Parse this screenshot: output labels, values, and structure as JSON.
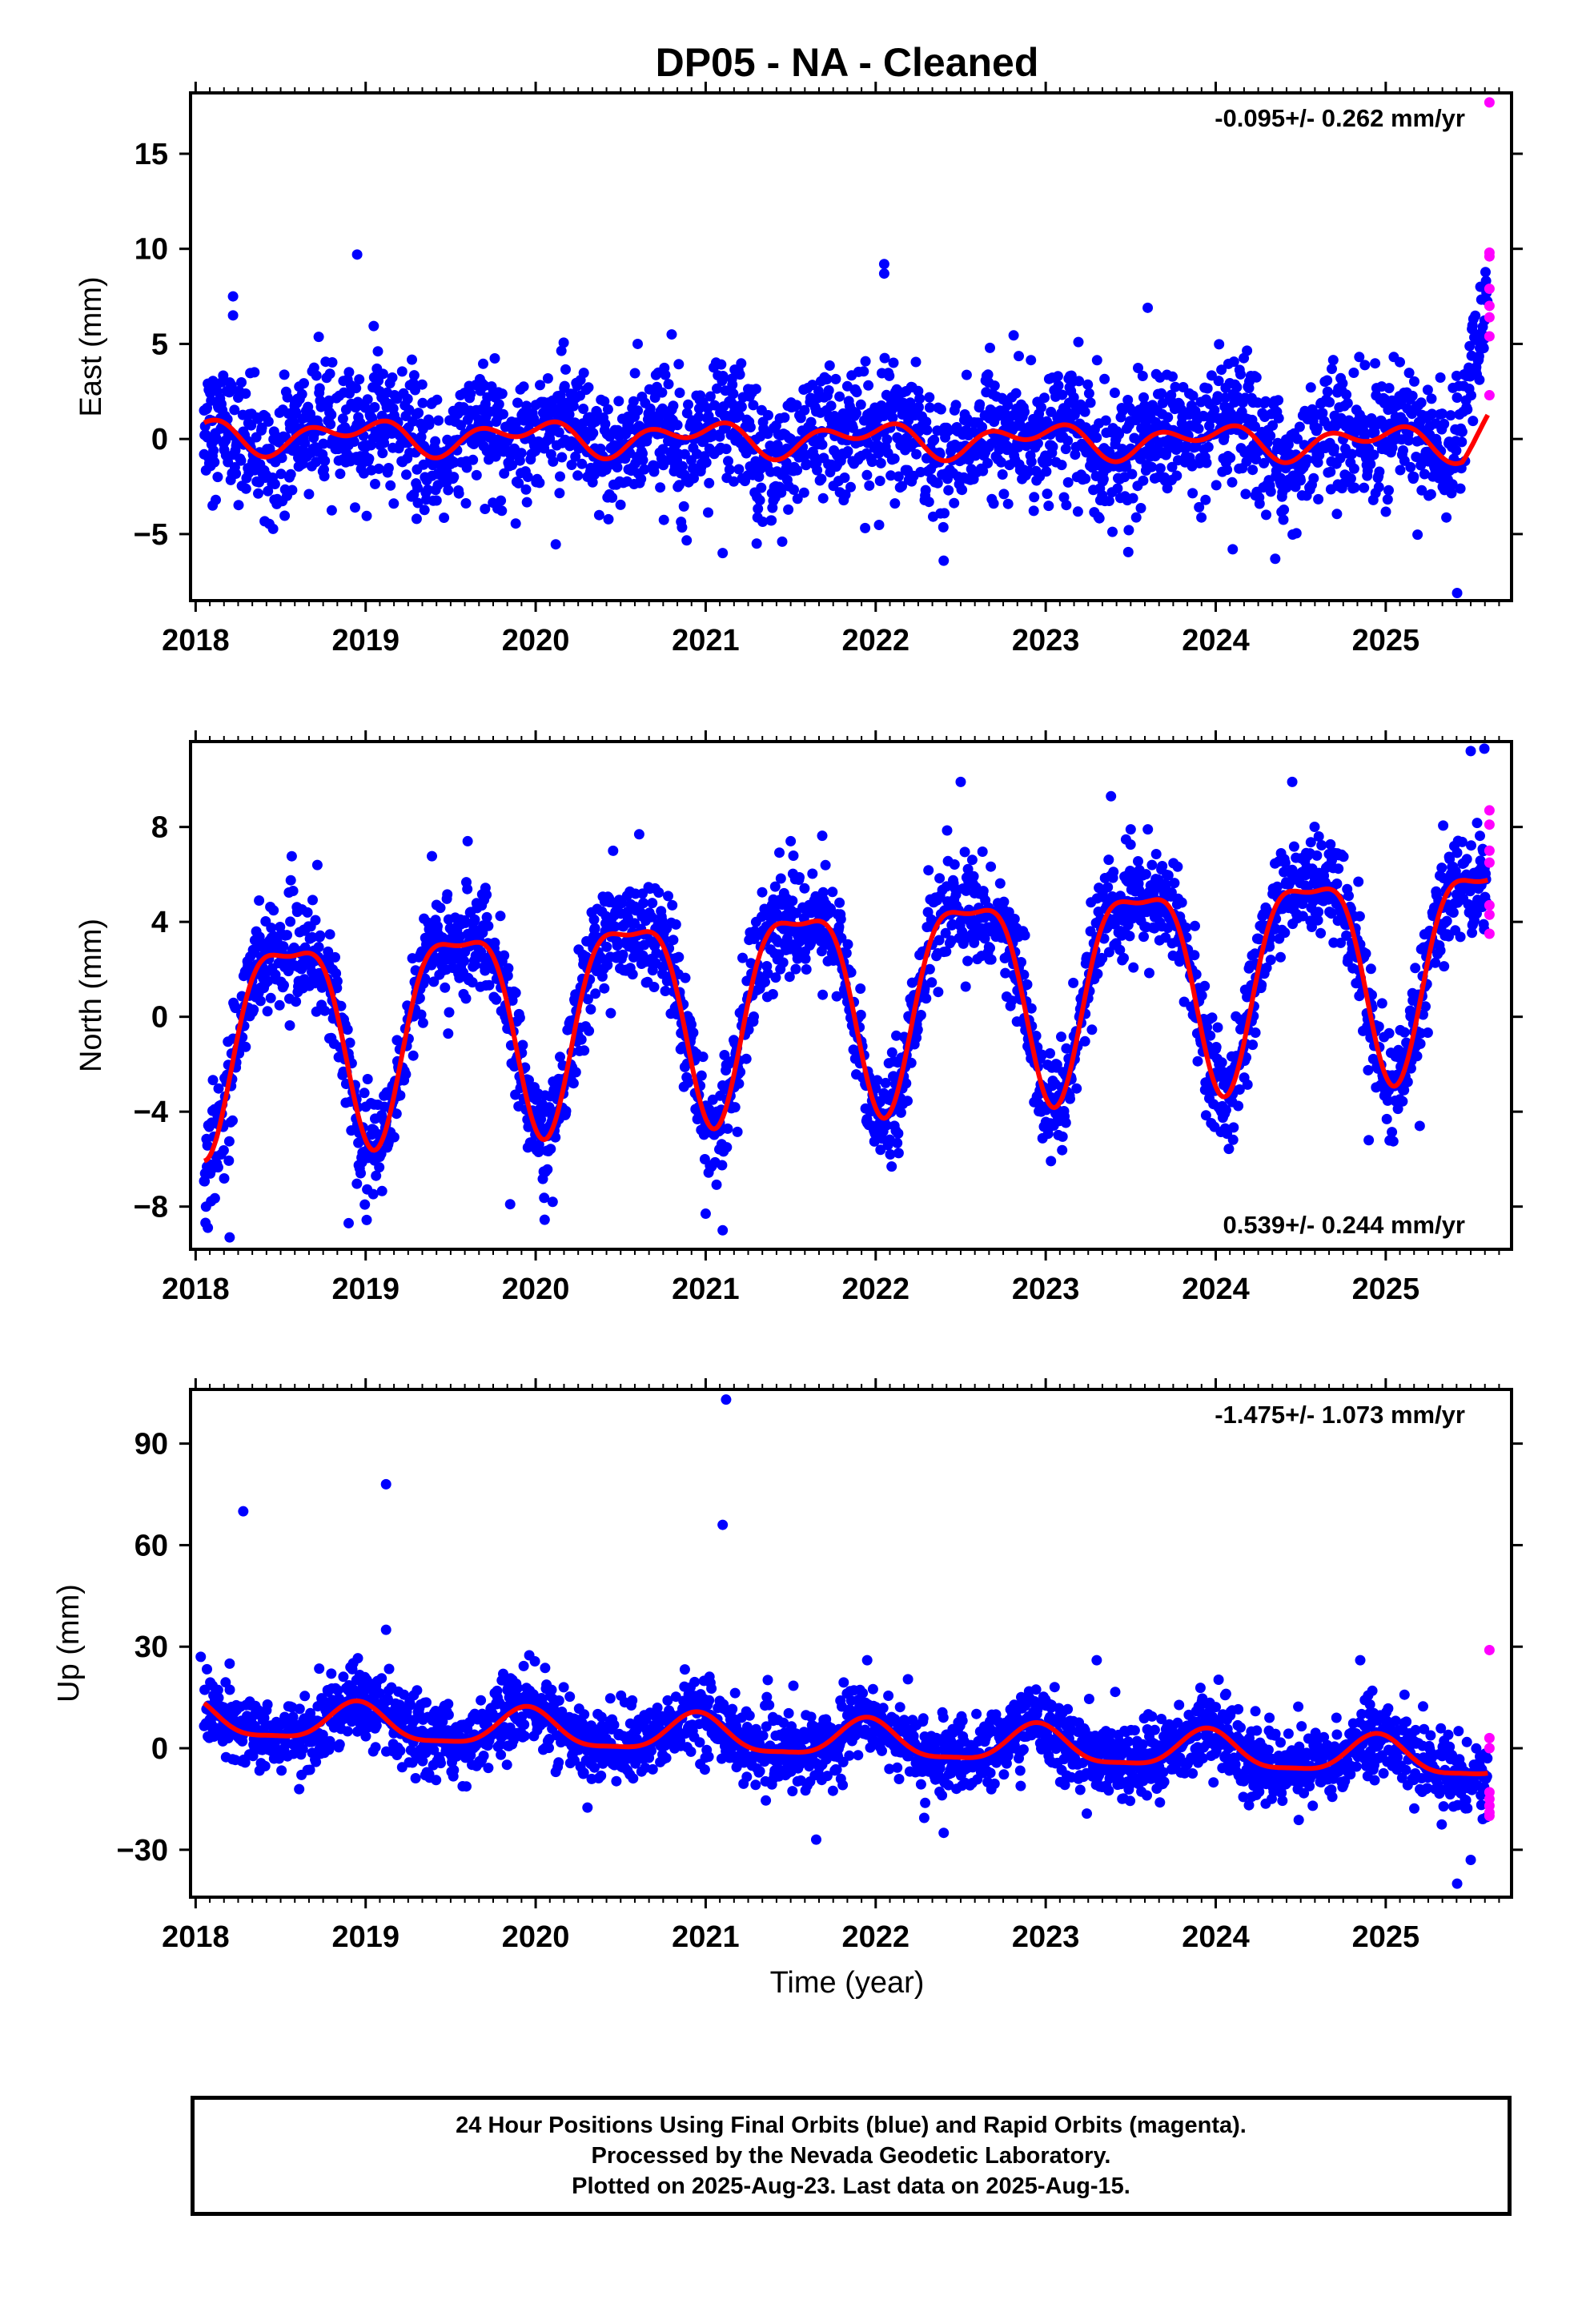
{
  "title": "DP05  - NA - Cleaned",
  "xlabel": "Time (year)",
  "x_ticks": [
    "2018",
    "2019",
    "2020",
    "2021",
    "2022",
    "2023",
    "2024",
    "2025"
  ],
  "colors": {
    "final": "#0000ff",
    "rapid": "#ff00ff",
    "model": "#ff0000",
    "frame": "#000000"
  },
  "footer": {
    "line1": "24 Hour Positions Using Final Orbits (blue) and Rapid Orbits (magenta).",
    "line2": "Processed by the Nevada Geodetic Laboratory.",
    "line3": "Plotted on 2025-Aug-23. Last data on 2025-Aug-15."
  },
  "chart_data": [
    {
      "type": "scatter",
      "ylabel": "East (mm)",
      "xlim": [
        2017.97,
        2025.74
      ],
      "ylim": [
        -8.5,
        18.2
      ],
      "yticks": [
        -5,
        0,
        5,
        10,
        15
      ],
      "rate": "-0.095+/- 0.262 mm/yr",
      "rate_position": "top-right",
      "model": {
        "mean": 0.7,
        "trend": -0.095,
        "annual_amp": 0.5,
        "annual_peak": 0.95,
        "semiannual_amp": 0.5,
        "semiannual_peak": 0.15,
        "end_rise": 1.6
      },
      "scatter_sigma": 1.6,
      "end_transient": {
        "start": 2025.35,
        "slope": 22,
        "base": -1.0
      },
      "outliers": [
        {
          "x": 2018.05,
          "y": 1.5
        },
        {
          "x": 2018.1,
          "y": -3.5
        },
        {
          "x": 2018.22,
          "y": 7.5
        },
        {
          "x": 2018.22,
          "y": 6.5
        },
        {
          "x": 2018.95,
          "y": 9.7
        },
        {
          "x": 2019.3,
          "y": -4.2
        },
        {
          "x": 2020.6,
          "y": 5.0
        },
        {
          "x": 2020.8,
          "y": 5.5
        },
        {
          "x": 2021.1,
          "y": -6.0
        },
        {
          "x": 2021.3,
          "y": -5.5
        },
        {
          "x": 2021.45,
          "y": -5.4
        },
        {
          "x": 2022.05,
          "y": 9.2
        },
        {
          "x": 2022.05,
          "y": 8.7
        },
        {
          "x": 2022.4,
          "y": -6.4
        },
        {
          "x": 2023.6,
          "y": 6.9
        },
        {
          "x": 2024.1,
          "y": -5.8
        },
        {
          "x": 2024.35,
          "y": -6.3
        },
        {
          "x": 2025.42,
          "y": -8.1
        }
      ],
      "rapid_points": [
        {
          "x": 2025.61,
          "y": 17.7
        },
        {
          "x": 2025.61,
          "y": 9.8
        },
        {
          "x": 2025.61,
          "y": 9.6
        },
        {
          "x": 2025.61,
          "y": 7.9
        },
        {
          "x": 2025.61,
          "y": 7.0
        },
        {
          "x": 2025.61,
          "y": 6.4
        },
        {
          "x": 2025.61,
          "y": 5.4
        },
        {
          "x": 2025.61,
          "y": 2.3
        }
      ]
    },
    {
      "type": "scatter",
      "ylabel": "North (mm)",
      "xlim": [
        2017.97,
        2025.74
      ],
      "ylim": [
        -9.8,
        11.6
      ],
      "yticks": [
        -8,
        -4,
        0,
        4,
        8
      ],
      "rate": "0.539+/- 0.244 mm/yr",
      "rate_position": "bottom-right",
      "model": {
        "mean": -0.6,
        "trend": 0.539,
        "annual_amp": 4.2,
        "annual_peak": 0.55,
        "semiannual_amp": 1.3,
        "semiannual_peak": 0.3
      },
      "scatter_sigma": 1.1,
      "outliers": [
        {
          "x": 2018.2,
          "y": -9.3
        },
        {
          "x": 2018.15,
          "y": -5.8
        },
        {
          "x": 2018.9,
          "y": -8.7
        },
        {
          "x": 2019.6,
          "y": 7.4
        },
        {
          "x": 2019.85,
          "y": -7.9
        },
        {
          "x": 2020.1,
          "y": -7.8
        },
        {
          "x": 2021.0,
          "y": -8.3
        },
        {
          "x": 2021.1,
          "y": -9.0
        },
        {
          "x": 2021.5,
          "y": 7.4
        },
        {
          "x": 2022.5,
          "y": 9.9
        },
        {
          "x": 2023.5,
          "y": 7.9
        },
        {
          "x": 2024.45,
          "y": 9.9
        },
        {
          "x": 2024.9,
          "y": -5.2
        },
        {
          "x": 2025.2,
          "y": -4.6
        },
        {
          "x": 2025.5,
          "y": 11.2
        },
        {
          "x": 2025.58,
          "y": 11.3
        }
      ],
      "rapid_points": [
        {
          "x": 2025.61,
          "y": 8.7
        },
        {
          "x": 2025.61,
          "y": 8.1
        },
        {
          "x": 2025.61,
          "y": 7.0
        },
        {
          "x": 2025.61,
          "y": 6.5
        },
        {
          "x": 2025.61,
          "y": 4.7
        },
        {
          "x": 2025.61,
          "y": 4.3
        },
        {
          "x": 2025.61,
          "y": 3.5
        }
      ]
    },
    {
      "type": "scatter",
      "ylabel": "Up (mm)",
      "xlim": [
        2017.97,
        2025.74
      ],
      "ylim": [
        -44,
        106
      ],
      "yticks": [
        -30,
        0,
        30,
        60,
        90
      ],
      "rate": "-1.475+/- 1.073 mm/yr",
      "rate_position": "top-right",
      "model": {
        "mean": 5.5,
        "trend": -1.475,
        "annual_amp": 5.5,
        "annual_peak": 0.95,
        "semiannual_amp": 1.5,
        "semiannual_peak": 0.45
      },
      "scatter_sigma": 5.5,
      "outliers": [
        {
          "x": 2018.03,
          "y": 27
        },
        {
          "x": 2018.28,
          "y": 70
        },
        {
          "x": 2019.12,
          "y": 78
        },
        {
          "x": 2019.12,
          "y": 35
        },
        {
          "x": 2021.12,
          "y": 103
        },
        {
          "x": 2021.1,
          "y": 66
        },
        {
          "x": 2021.65,
          "y": -27
        },
        {
          "x": 2022.4,
          "y": -25
        },
        {
          "x": 2023.3,
          "y": 26
        },
        {
          "x": 2024.85,
          "y": 26
        },
        {
          "x": 2025.42,
          "y": -40
        },
        {
          "x": 2025.5,
          "y": -33
        },
        {
          "x": 2018.2,
          "y": 25
        },
        {
          "x": 2021.95,
          "y": 26
        }
      ],
      "rapid_points": [
        {
          "x": 2025.61,
          "y": 29
        },
        {
          "x": 2025.61,
          "y": 3
        },
        {
          "x": 2025.61,
          "y": 0
        },
        {
          "x": 2025.61,
          "y": -13
        },
        {
          "x": 2025.61,
          "y": -15
        },
        {
          "x": 2025.61,
          "y": -17
        },
        {
          "x": 2025.61,
          "y": -19
        },
        {
          "x": 2025.61,
          "y": -20
        }
      ]
    }
  ]
}
